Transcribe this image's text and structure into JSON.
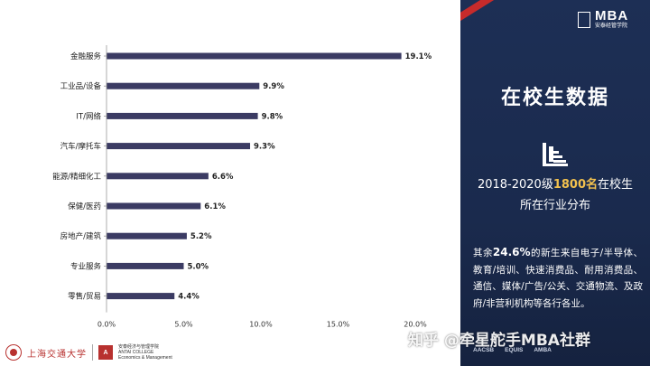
{
  "chart_data": {
    "type": "bar",
    "orientation": "horizontal",
    "categories": [
      "金融服务",
      "工业品/设备",
      "IT/网络",
      "汽车/摩托车",
      "能源/精细化工",
      "保健/医药",
      "房地产/建筑",
      "专业服务",
      "零售/贸易"
    ],
    "values": [
      19.1,
      9.9,
      9.8,
      9.3,
      6.6,
      6.1,
      5.2,
      5.0,
      4.4
    ],
    "value_labels": [
      "19.1%",
      "9.9%",
      "9.8%",
      "9.3%",
      "6.6%",
      "6.1%",
      "5.2%",
      "5.0%",
      "4.4%"
    ],
    "xlim": [
      0,
      20
    ],
    "x_ticks": [
      0,
      5,
      10,
      15,
      20
    ],
    "x_tick_labels": [
      "0.0%",
      "5.0%",
      "10.0%",
      "15.0%",
      "20.0%"
    ],
    "title": "",
    "xlabel": "",
    "ylabel": "",
    "grid": false,
    "legend": "none",
    "bar_color": "#3b3b63"
  },
  "footer": {
    "university": "上海交通大学",
    "school_name": "安泰经济与管理学院",
    "school_en": "ANTAI COLLEGE",
    "school_en_sub": "Economics & Management"
  },
  "panel": {
    "logo_text": "MBA",
    "logo_sub": "安泰经管学院",
    "title": "在校生数据",
    "icon": "bar-chart-icon",
    "headline_pre": "2018-2020级",
    "headline_num": "1800名",
    "headline_post": "在校生",
    "headline_line2": "所在行业分布",
    "body_pre": "其余",
    "body_pct": "24.6%",
    "body_post": "的新生来自电子/半导体、教育/培训、快速消费品、耐用消费品、通信、媒体/广告/公关、交通物流、及政府/非营利机构等各行各业。",
    "accreditations": [
      "AACSB",
      "EQUIS",
      "AMBA"
    ],
    "watermark": "知乎 @牵星舵手MBA社群"
  },
  "colors": {
    "panel_bg": "#1d2f55",
    "accent_red": "#c62b2b",
    "highlight_yellow": "#f2c14e"
  }
}
